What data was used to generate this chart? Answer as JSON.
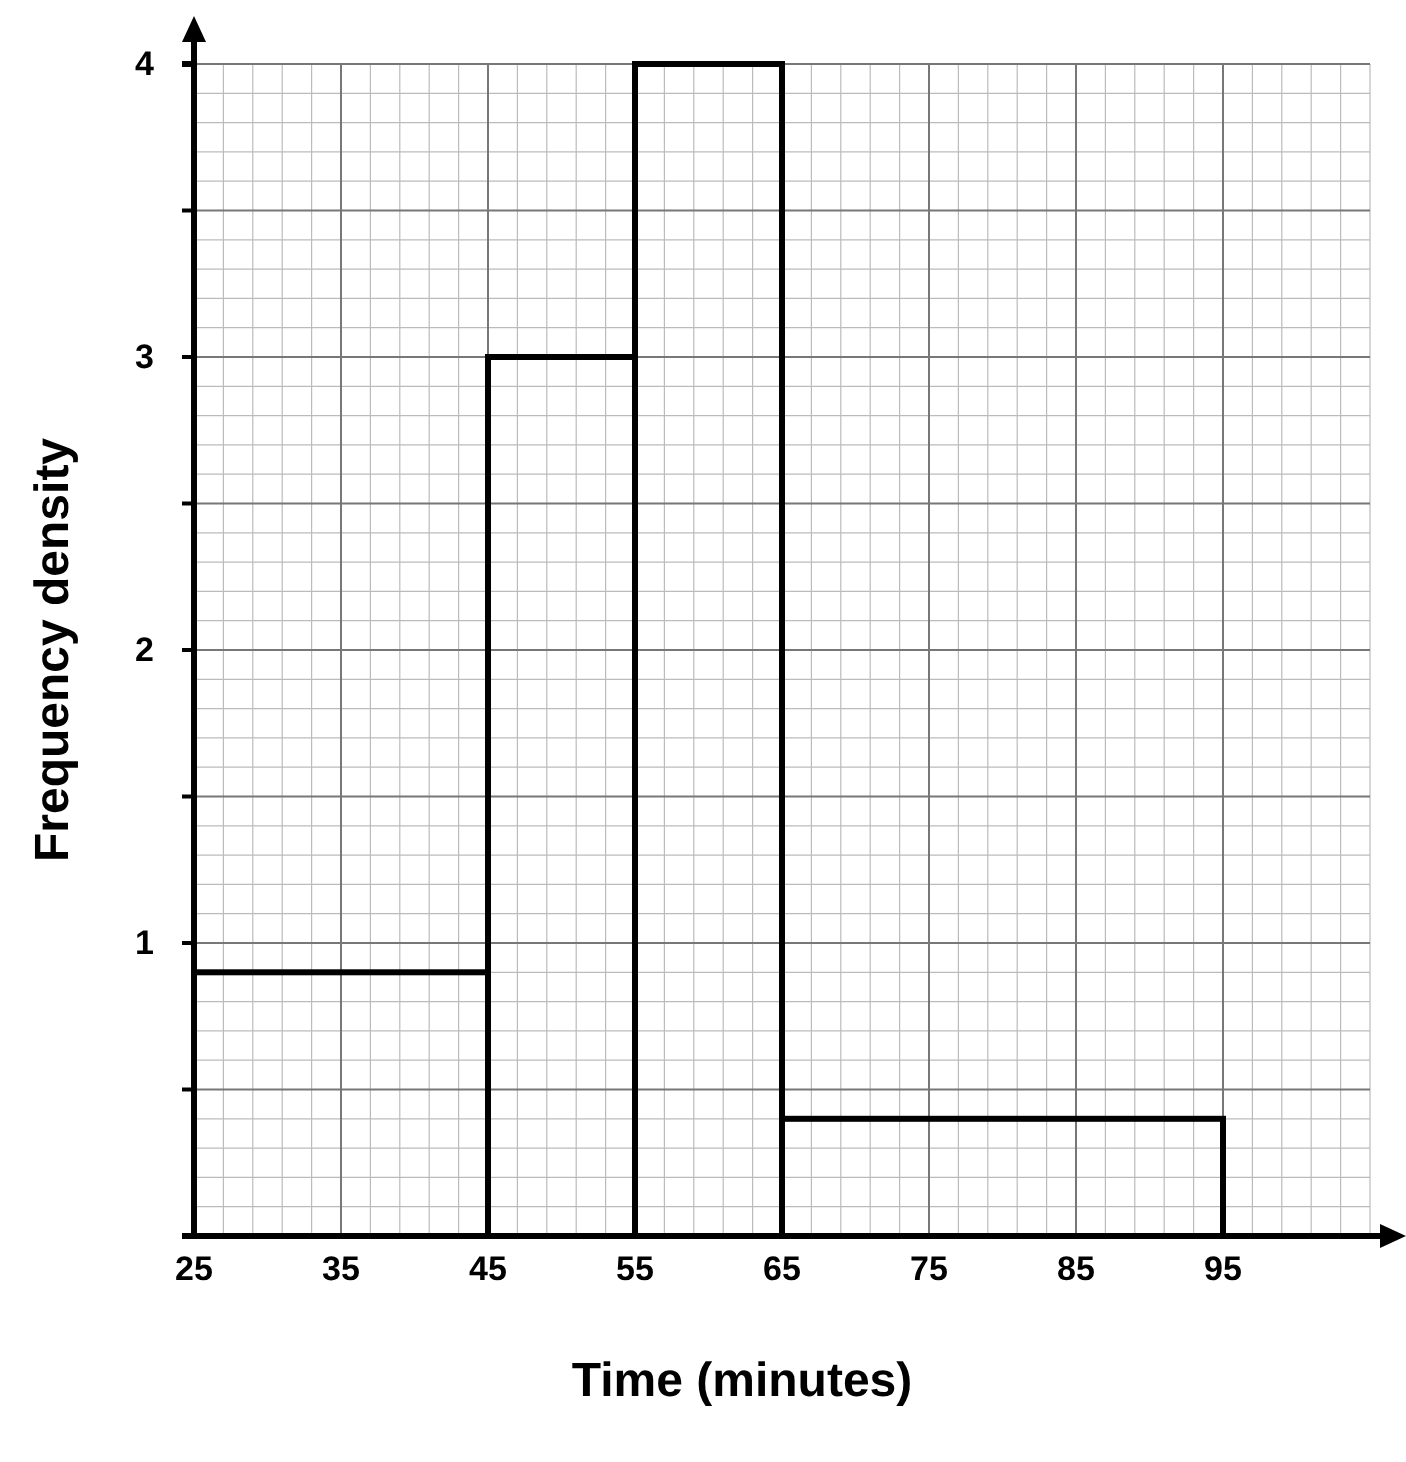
{
  "chart_data": {
    "type": "histogram",
    "xlabel": "Time (minutes)",
    "ylabel": "Frequency density",
    "bins": [
      25,
      45,
      55,
      65,
      95
    ],
    "values": [
      0.9,
      3,
      4,
      0.4
    ],
    "color": "#000000",
    "xlim": [
      25,
      105
    ],
    "xticks": [
      25,
      35,
      45,
      55,
      65,
      75,
      85,
      95
    ],
    "ylim": [
      0,
      4
    ],
    "yticks": [
      {
        "value": 0.5,
        "label": null
      },
      1,
      {
        "value": 1.5,
        "label": null
      },
      2,
      {
        "value": 2.5,
        "label": null
      },
      3,
      {
        "value": 3.5,
        "label": null
      },
      4
    ],
    "grid": true
  }
}
